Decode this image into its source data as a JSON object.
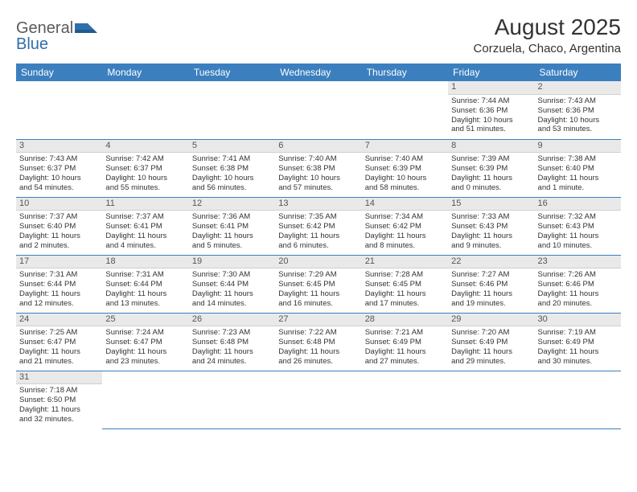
{
  "brand": {
    "general": "General",
    "blue": "Blue"
  },
  "title": "August 2025",
  "location": "Corzuela, Chaco, Argentina",
  "colors": {
    "header_bg": "#3b7fbf",
    "header_text": "#ffffff",
    "daynum_bg": "#e9e9e9",
    "row_border": "#3b7fbf",
    "page_bg": "#ffffff"
  },
  "weekdays": [
    "Sunday",
    "Monday",
    "Tuesday",
    "Wednesday",
    "Thursday",
    "Friday",
    "Saturday"
  ],
  "weeks": [
    [
      null,
      null,
      null,
      null,
      null,
      {
        "n": "1",
        "sr": "Sunrise: 7:44 AM",
        "ss": "Sunset: 6:36 PM",
        "d1": "Daylight: 10 hours",
        "d2": "and 51 minutes."
      },
      {
        "n": "2",
        "sr": "Sunrise: 7:43 AM",
        "ss": "Sunset: 6:36 PM",
        "d1": "Daylight: 10 hours",
        "d2": "and 53 minutes."
      }
    ],
    [
      {
        "n": "3",
        "sr": "Sunrise: 7:43 AM",
        "ss": "Sunset: 6:37 PM",
        "d1": "Daylight: 10 hours",
        "d2": "and 54 minutes."
      },
      {
        "n": "4",
        "sr": "Sunrise: 7:42 AM",
        "ss": "Sunset: 6:37 PM",
        "d1": "Daylight: 10 hours",
        "d2": "and 55 minutes."
      },
      {
        "n": "5",
        "sr": "Sunrise: 7:41 AM",
        "ss": "Sunset: 6:38 PM",
        "d1": "Daylight: 10 hours",
        "d2": "and 56 minutes."
      },
      {
        "n": "6",
        "sr": "Sunrise: 7:40 AM",
        "ss": "Sunset: 6:38 PM",
        "d1": "Daylight: 10 hours",
        "d2": "and 57 minutes."
      },
      {
        "n": "7",
        "sr": "Sunrise: 7:40 AM",
        "ss": "Sunset: 6:39 PM",
        "d1": "Daylight: 10 hours",
        "d2": "and 58 minutes."
      },
      {
        "n": "8",
        "sr": "Sunrise: 7:39 AM",
        "ss": "Sunset: 6:39 PM",
        "d1": "Daylight: 11 hours",
        "d2": "and 0 minutes."
      },
      {
        "n": "9",
        "sr": "Sunrise: 7:38 AM",
        "ss": "Sunset: 6:40 PM",
        "d1": "Daylight: 11 hours",
        "d2": "and 1 minute."
      }
    ],
    [
      {
        "n": "10",
        "sr": "Sunrise: 7:37 AM",
        "ss": "Sunset: 6:40 PM",
        "d1": "Daylight: 11 hours",
        "d2": "and 2 minutes."
      },
      {
        "n": "11",
        "sr": "Sunrise: 7:37 AM",
        "ss": "Sunset: 6:41 PM",
        "d1": "Daylight: 11 hours",
        "d2": "and 4 minutes."
      },
      {
        "n": "12",
        "sr": "Sunrise: 7:36 AM",
        "ss": "Sunset: 6:41 PM",
        "d1": "Daylight: 11 hours",
        "d2": "and 5 minutes."
      },
      {
        "n": "13",
        "sr": "Sunrise: 7:35 AM",
        "ss": "Sunset: 6:42 PM",
        "d1": "Daylight: 11 hours",
        "d2": "and 6 minutes."
      },
      {
        "n": "14",
        "sr": "Sunrise: 7:34 AM",
        "ss": "Sunset: 6:42 PM",
        "d1": "Daylight: 11 hours",
        "d2": "and 8 minutes."
      },
      {
        "n": "15",
        "sr": "Sunrise: 7:33 AM",
        "ss": "Sunset: 6:43 PM",
        "d1": "Daylight: 11 hours",
        "d2": "and 9 minutes."
      },
      {
        "n": "16",
        "sr": "Sunrise: 7:32 AM",
        "ss": "Sunset: 6:43 PM",
        "d1": "Daylight: 11 hours",
        "d2": "and 10 minutes."
      }
    ],
    [
      {
        "n": "17",
        "sr": "Sunrise: 7:31 AM",
        "ss": "Sunset: 6:44 PM",
        "d1": "Daylight: 11 hours",
        "d2": "and 12 minutes."
      },
      {
        "n": "18",
        "sr": "Sunrise: 7:31 AM",
        "ss": "Sunset: 6:44 PM",
        "d1": "Daylight: 11 hours",
        "d2": "and 13 minutes."
      },
      {
        "n": "19",
        "sr": "Sunrise: 7:30 AM",
        "ss": "Sunset: 6:44 PM",
        "d1": "Daylight: 11 hours",
        "d2": "and 14 minutes."
      },
      {
        "n": "20",
        "sr": "Sunrise: 7:29 AM",
        "ss": "Sunset: 6:45 PM",
        "d1": "Daylight: 11 hours",
        "d2": "and 16 minutes."
      },
      {
        "n": "21",
        "sr": "Sunrise: 7:28 AM",
        "ss": "Sunset: 6:45 PM",
        "d1": "Daylight: 11 hours",
        "d2": "and 17 minutes."
      },
      {
        "n": "22",
        "sr": "Sunrise: 7:27 AM",
        "ss": "Sunset: 6:46 PM",
        "d1": "Daylight: 11 hours",
        "d2": "and 19 minutes."
      },
      {
        "n": "23",
        "sr": "Sunrise: 7:26 AM",
        "ss": "Sunset: 6:46 PM",
        "d1": "Daylight: 11 hours",
        "d2": "and 20 minutes."
      }
    ],
    [
      {
        "n": "24",
        "sr": "Sunrise: 7:25 AM",
        "ss": "Sunset: 6:47 PM",
        "d1": "Daylight: 11 hours",
        "d2": "and 21 minutes."
      },
      {
        "n": "25",
        "sr": "Sunrise: 7:24 AM",
        "ss": "Sunset: 6:47 PM",
        "d1": "Daylight: 11 hours",
        "d2": "and 23 minutes."
      },
      {
        "n": "26",
        "sr": "Sunrise: 7:23 AM",
        "ss": "Sunset: 6:48 PM",
        "d1": "Daylight: 11 hours",
        "d2": "and 24 minutes."
      },
      {
        "n": "27",
        "sr": "Sunrise: 7:22 AM",
        "ss": "Sunset: 6:48 PM",
        "d1": "Daylight: 11 hours",
        "d2": "and 26 minutes."
      },
      {
        "n": "28",
        "sr": "Sunrise: 7:21 AM",
        "ss": "Sunset: 6:49 PM",
        "d1": "Daylight: 11 hours",
        "d2": "and 27 minutes."
      },
      {
        "n": "29",
        "sr": "Sunrise: 7:20 AM",
        "ss": "Sunset: 6:49 PM",
        "d1": "Daylight: 11 hours",
        "d2": "and 29 minutes."
      },
      {
        "n": "30",
        "sr": "Sunrise: 7:19 AM",
        "ss": "Sunset: 6:49 PM",
        "d1": "Daylight: 11 hours",
        "d2": "and 30 minutes."
      }
    ],
    [
      {
        "n": "31",
        "sr": "Sunrise: 7:18 AM",
        "ss": "Sunset: 6:50 PM",
        "d1": "Daylight: 11 hours",
        "d2": "and 32 minutes."
      },
      null,
      null,
      null,
      null,
      null,
      null
    ]
  ]
}
